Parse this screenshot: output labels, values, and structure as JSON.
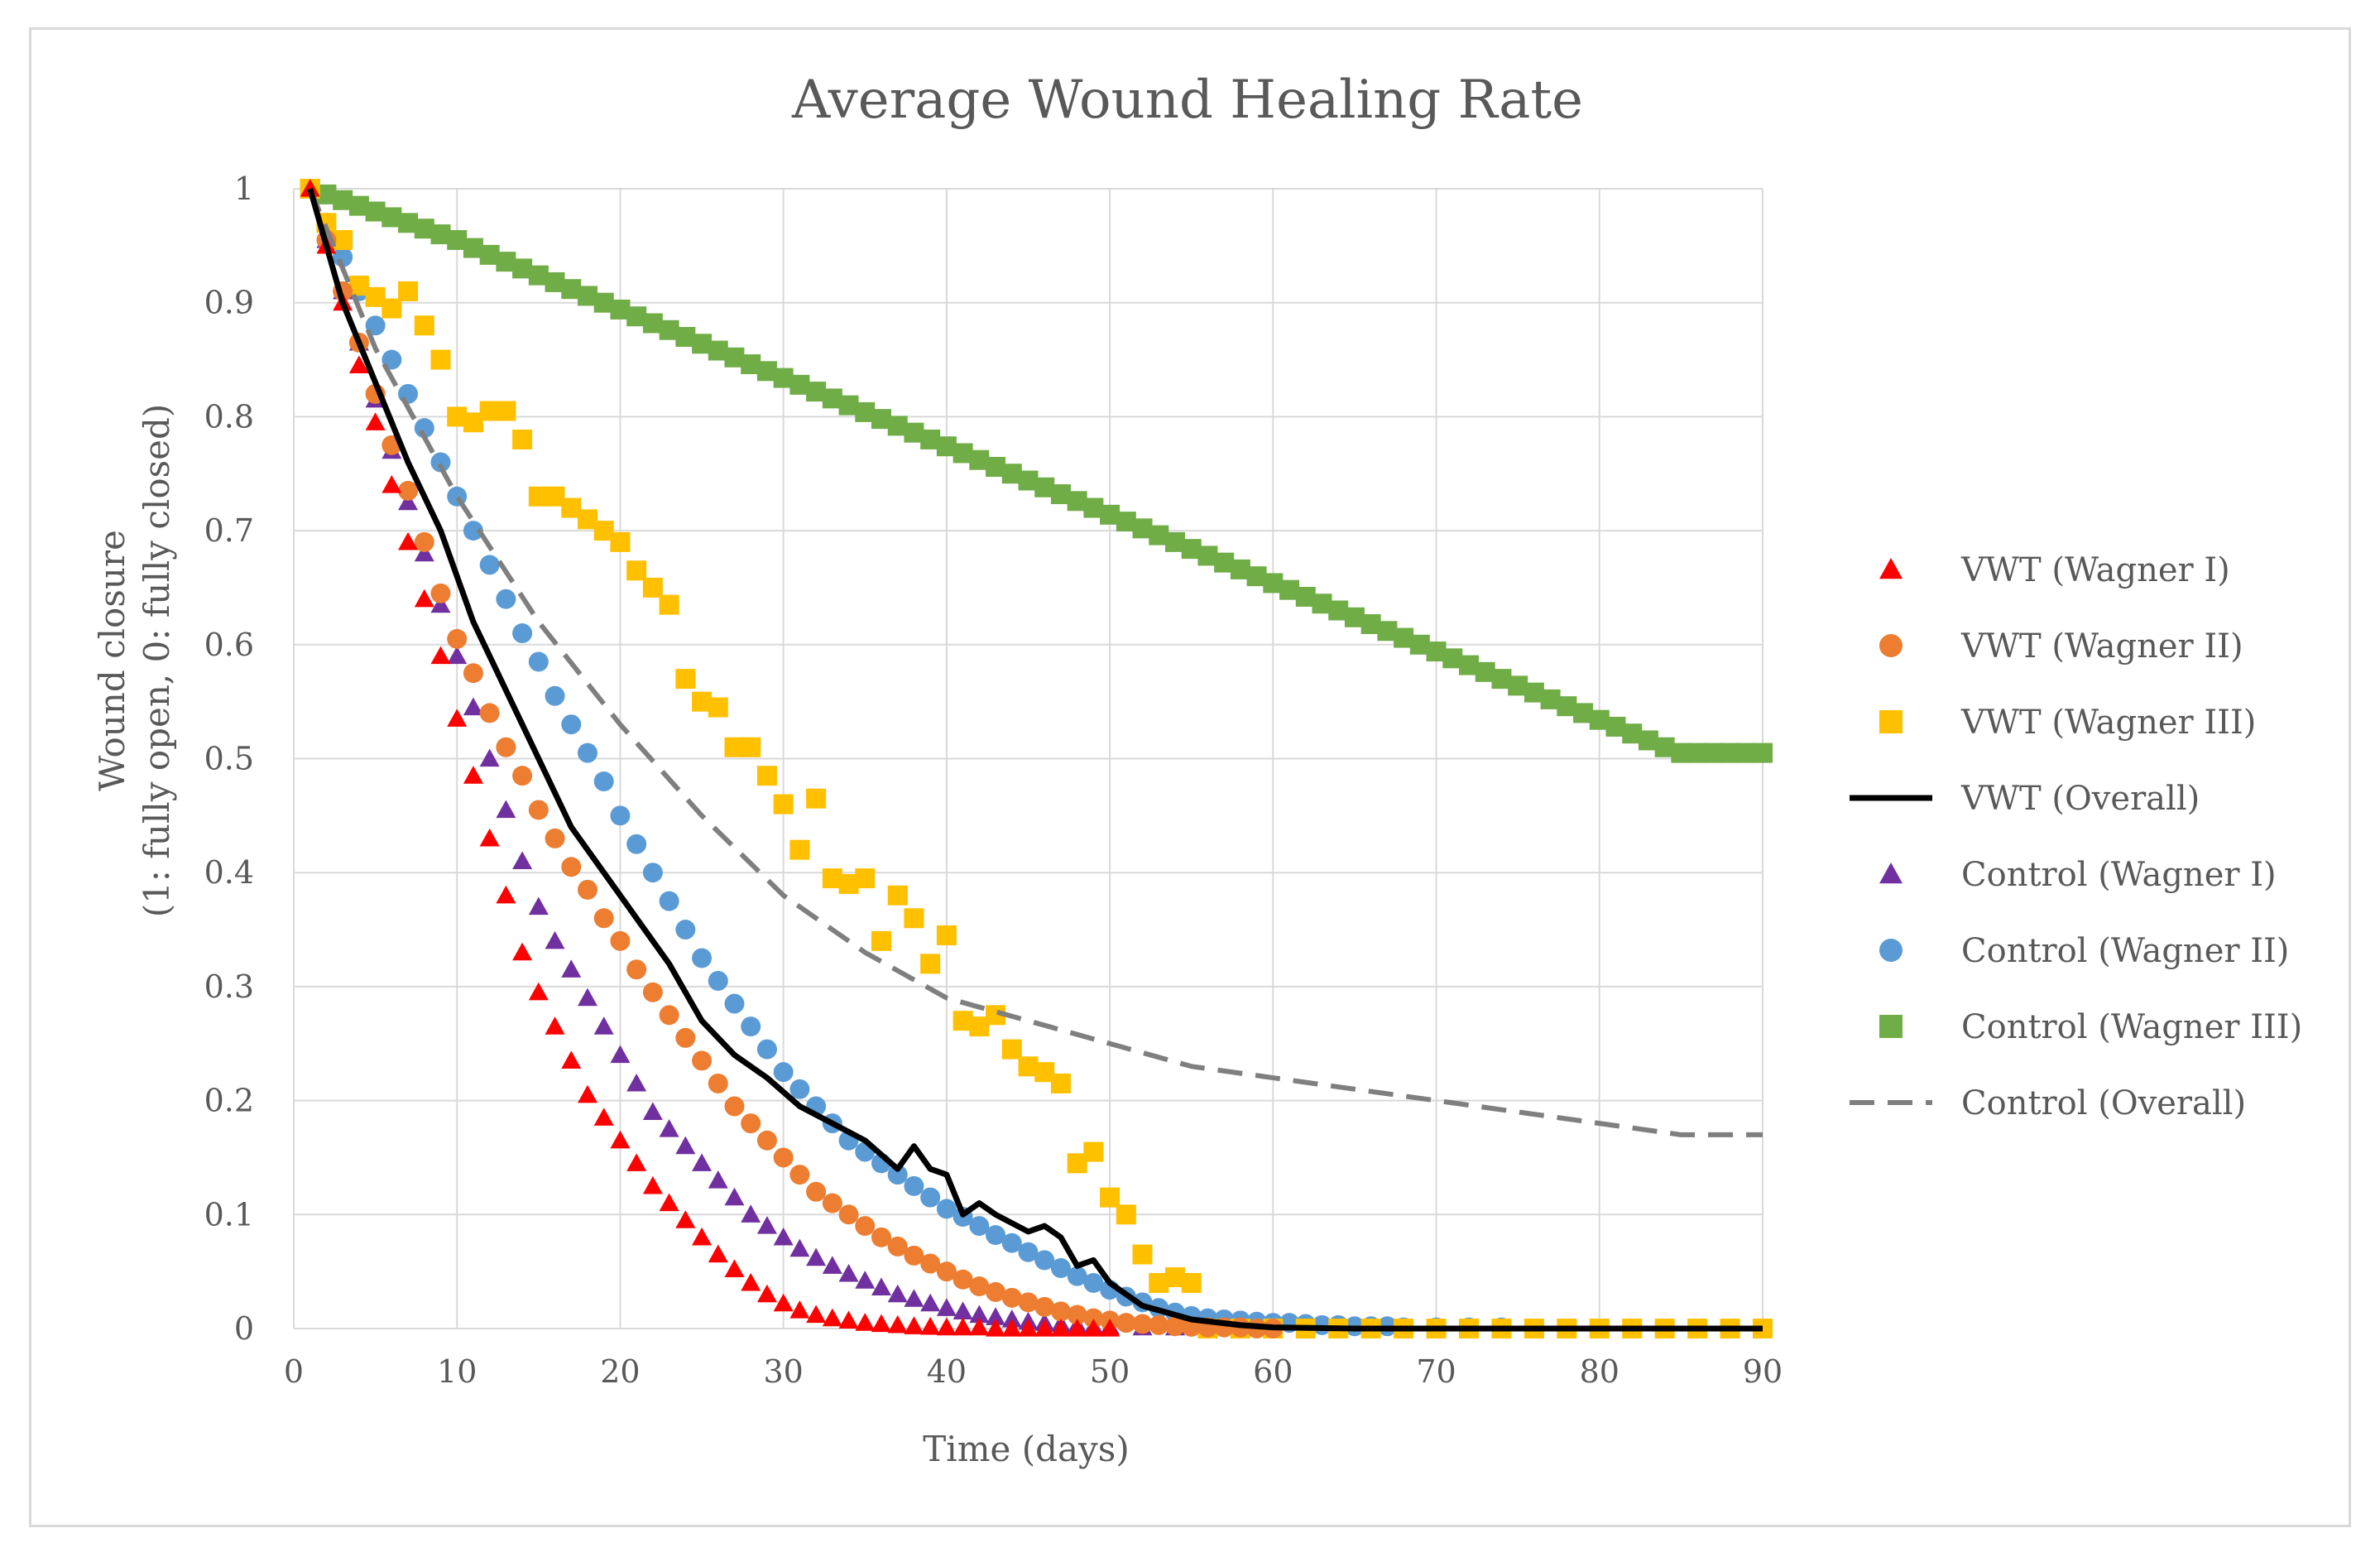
{
  "chart_data": {
    "type": "scatter",
    "title": "Average Wound Healing Rate",
    "xlabel": "Time (days)",
    "ylabel_line1": "Wound closure",
    "ylabel_line2": "(1: fully open, 0: fully closed)",
    "xlim": [
      0,
      90
    ],
    "ylim": [
      0,
      1
    ],
    "xticks": [
      "0",
      "10",
      "20",
      "30",
      "40",
      "50",
      "60",
      "70",
      "80",
      "90"
    ],
    "yticks": [
      "0",
      "0.1",
      "0.2",
      "0.3",
      "0.4",
      "0.5",
      "0.6",
      "0.7",
      "0.8",
      "0.9",
      "1"
    ],
    "grid": true,
    "legend_position": "right",
    "series": [
      {
        "name": "VWT (Wagner I)",
        "kind": "marker",
        "marker": "triangle",
        "color": "#ff0000",
        "x": [
          1,
          2,
          3,
          4,
          5,
          6,
          7,
          8,
          9,
          10,
          11,
          12,
          13,
          14,
          15,
          16,
          17,
          18,
          19,
          20,
          21,
          22,
          23,
          24,
          25,
          26,
          27,
          28,
          29,
          30,
          31,
          32,
          33,
          34,
          35,
          36,
          37,
          38,
          39,
          40,
          41,
          42,
          43,
          44,
          45,
          46,
          47,
          48,
          49,
          50
        ],
        "y": [
          1,
          0.95,
          0.9,
          0.845,
          0.795,
          0.74,
          0.69,
          0.64,
          0.59,
          0.535,
          0.485,
          0.43,
          0.38,
          0.33,
          0.295,
          0.265,
          0.235,
          0.205,
          0.185,
          0.165,
          0.145,
          0.125,
          0.11,
          0.095,
          0.08,
          0.065,
          0.052,
          0.04,
          0.03,
          0.022,
          0.016,
          0.012,
          0.009,
          0.007,
          0.005,
          0.004,
          0.003,
          0.002,
          0.0015,
          0.001,
          0.001,
          0.001,
          0,
          0,
          0,
          0,
          0,
          0,
          0,
          0
        ]
      },
      {
        "name": "VWT (Wagner II)",
        "kind": "marker",
        "marker": "circle",
        "color": "#ed7d31",
        "x": [
          2,
          3,
          4,
          5,
          6,
          7,
          8,
          9,
          10,
          11,
          12,
          13,
          14,
          15,
          16,
          17,
          18,
          19,
          20,
          21,
          22,
          23,
          24,
          25,
          26,
          27,
          28,
          29,
          30,
          31,
          32,
          33,
          34,
          35,
          36,
          37,
          38,
          39,
          40,
          41,
          42,
          43,
          44,
          45,
          46,
          47,
          48,
          49,
          50,
          51,
          52,
          53,
          54,
          55,
          56,
          57,
          58,
          59,
          60
        ],
        "y": [
          0.955,
          0.91,
          0.865,
          0.82,
          0.775,
          0.735,
          0.69,
          0.645,
          0.605,
          0.575,
          0.54,
          0.51,
          0.485,
          0.455,
          0.43,
          0.405,
          0.385,
          0.36,
          0.34,
          0.315,
          0.295,
          0.275,
          0.255,
          0.235,
          0.215,
          0.195,
          0.18,
          0.165,
          0.15,
          0.135,
          0.12,
          0.11,
          0.1,
          0.09,
          0.08,
          0.072,
          0.064,
          0.057,
          0.05,
          0.043,
          0.037,
          0.032,
          0.027,
          0.023,
          0.019,
          0.015,
          0.012,
          0.009,
          0.007,
          0.005,
          0.004,
          0.003,
          0.002,
          0.0015,
          0.001,
          0.001,
          0.001,
          0,
          0
        ]
      },
      {
        "name": "VWT (Wagner III)",
        "kind": "marker",
        "marker": "square",
        "color": "#ffc000",
        "x": [
          1,
          2,
          3,
          4,
          5,
          6,
          7,
          8,
          9,
          10,
          11,
          12,
          13,
          14,
          15,
          16,
          17,
          18,
          19,
          20,
          21,
          22,
          23,
          24,
          25,
          26,
          27,
          28,
          29,
          30,
          31,
          32,
          33,
          34,
          35,
          36,
          37,
          38,
          39,
          40,
          41,
          42,
          43,
          44,
          45,
          46,
          47,
          48,
          49,
          50,
          51,
          52,
          53,
          54,
          55,
          56,
          58,
          60,
          62,
          64,
          66,
          68,
          70,
          72,
          74,
          76,
          78,
          80,
          82,
          84,
          86,
          88,
          90
        ],
        "y": [
          1,
          0.97,
          0.955,
          0.915,
          0.905,
          0.895,
          0.91,
          0.88,
          0.85,
          0.8,
          0.795,
          0.805,
          0.805,
          0.78,
          0.73,
          0.73,
          0.72,
          0.71,
          0.7,
          0.69,
          0.665,
          0.65,
          0.635,
          0.57,
          0.55,
          0.545,
          0.51,
          0.51,
          0.485,
          0.46,
          0.42,
          0.465,
          0.395,
          0.39,
          0.395,
          0.34,
          0.38,
          0.36,
          0.32,
          0.345,
          0.27,
          0.265,
          0.275,
          0.245,
          0.23,
          0.225,
          0.215,
          0.145,
          0.155,
          0.115,
          0.1,
          0.065,
          0.04,
          0.045,
          0.04,
          0,
          0,
          0,
          0,
          0,
          0,
          0,
          0,
          0,
          0,
          0,
          0,
          0,
          0,
          0,
          0,
          0,
          0
        ]
      },
      {
        "name": "VWT (Overall)",
        "kind": "line",
        "dash": "solid",
        "color": "#000000",
        "x": [
          1,
          3,
          5,
          7,
          9,
          11,
          13,
          15,
          17,
          19,
          21,
          23,
          25,
          27,
          29,
          31,
          33,
          35,
          37,
          38,
          39,
          40,
          41,
          42,
          43,
          45,
          46,
          47,
          48,
          49,
          50,
          52,
          55,
          58,
          60,
          65,
          70,
          80,
          90
        ],
        "y": [
          1,
          0.9,
          0.83,
          0.76,
          0.7,
          0.62,
          0.56,
          0.5,
          0.44,
          0.4,
          0.36,
          0.32,
          0.27,
          0.24,
          0.22,
          0.195,
          0.18,
          0.165,
          0.14,
          0.16,
          0.14,
          0.135,
          0.1,
          0.11,
          0.1,
          0.085,
          0.09,
          0.08,
          0.055,
          0.06,
          0.04,
          0.02,
          0.008,
          0.003,
          0.001,
          0,
          0,
          0,
          0
        ]
      },
      {
        "name": "Control (Wagner I)",
        "kind": "marker",
        "marker": "triangle",
        "color": "#7030a0",
        "x": [
          1,
          2,
          3,
          4,
          5,
          6,
          7,
          8,
          9,
          10,
          11,
          12,
          13,
          14,
          15,
          16,
          17,
          18,
          19,
          20,
          21,
          22,
          23,
          24,
          25,
          26,
          27,
          28,
          29,
          30,
          31,
          32,
          33,
          34,
          35,
          36,
          37,
          38,
          39,
          40,
          41,
          42,
          43,
          44,
          45,
          46,
          47,
          48,
          49,
          50,
          52,
          54,
          56,
          58,
          60,
          62,
          64,
          66,
          68
        ],
        "y": [
          1,
          0.955,
          0.91,
          0.865,
          0.815,
          0.77,
          0.725,
          0.68,
          0.635,
          0.59,
          0.545,
          0.5,
          0.455,
          0.41,
          0.37,
          0.34,
          0.315,
          0.29,
          0.265,
          0.24,
          0.215,
          0.19,
          0.175,
          0.16,
          0.145,
          0.13,
          0.115,
          0.1,
          0.09,
          0.08,
          0.07,
          0.062,
          0.055,
          0.048,
          0.042,
          0.036,
          0.03,
          0.026,
          0.022,
          0.018,
          0.015,
          0.012,
          0.01,
          0.008,
          0.006,
          0.005,
          0.004,
          0.003,
          0.002,
          0.0015,
          0.001,
          0.001,
          0,
          0,
          0,
          0,
          0,
          0,
          0
        ]
      },
      {
        "name": "Control (Wagner II)",
        "kind": "marker",
        "marker": "circle",
        "color": "#5b9bd5",
        "x": [
          2,
          3,
          4,
          5,
          6,
          7,
          8,
          9,
          10,
          11,
          12,
          13,
          14,
          15,
          16,
          17,
          18,
          19,
          20,
          21,
          22,
          23,
          24,
          25,
          26,
          27,
          28,
          29,
          30,
          31,
          32,
          33,
          34,
          35,
          36,
          37,
          38,
          39,
          40,
          41,
          42,
          43,
          44,
          45,
          46,
          47,
          48,
          49,
          50,
          51,
          52,
          53,
          54,
          55,
          56,
          57,
          58,
          59,
          60,
          61,
          62,
          63,
          64,
          65,
          66,
          67,
          68,
          70,
          72,
          74,
          76,
          78,
          80,
          82,
          84,
          86,
          88,
          90
        ],
        "y": [
          0.97,
          0.94,
          0.91,
          0.88,
          0.85,
          0.82,
          0.79,
          0.76,
          0.73,
          0.7,
          0.67,
          0.64,
          0.61,
          0.585,
          0.555,
          0.53,
          0.505,
          0.48,
          0.45,
          0.425,
          0.4,
          0.375,
          0.35,
          0.325,
          0.305,
          0.285,
          0.265,
          0.245,
          0.225,
          0.21,
          0.195,
          0.18,
          0.165,
          0.155,
          0.145,
          0.135,
          0.125,
          0.115,
          0.105,
          0.098,
          0.09,
          0.082,
          0.075,
          0.067,
          0.06,
          0.053,
          0.046,
          0.04,
          0.034,
          0.028,
          0.023,
          0.018,
          0.014,
          0.011,
          0.009,
          0.008,
          0.007,
          0.006,
          0.005,
          0.005,
          0.004,
          0.003,
          0.003,
          0.002,
          0.002,
          0.002,
          0.001,
          0.001,
          0.001,
          0.001,
          0,
          0,
          0,
          0,
          0,
          0,
          0,
          0
        ]
      },
      {
        "name": "Control (Wagner III)",
        "kind": "marker",
        "marker": "square",
        "color": "#70ad47",
        "x": [
          1,
          2,
          3,
          4,
          5,
          6,
          7,
          8,
          9,
          10,
          11,
          12,
          13,
          14,
          15,
          16,
          17,
          18,
          19,
          20,
          21,
          22,
          23,
          24,
          25,
          26,
          27,
          28,
          29,
          30,
          31,
          32,
          33,
          34,
          35,
          36,
          37,
          38,
          39,
          40,
          41,
          42,
          43,
          44,
          45,
          46,
          47,
          48,
          49,
          50,
          51,
          52,
          53,
          54,
          55,
          56,
          57,
          58,
          59,
          60,
          61,
          62,
          63,
          64,
          65,
          66,
          67,
          68,
          69,
          70,
          71,
          72,
          73,
          74,
          75,
          76,
          77,
          78,
          79,
          80,
          81,
          82,
          83,
          84,
          85,
          86,
          87,
          88,
          89,
          90
        ],
        "y": [
          1,
          0.995,
          0.99,
          0.985,
          0.98,
          0.975,
          0.97,
          0.965,
          0.96,
          0.955,
          0.948,
          0.942,
          0.936,
          0.93,
          0.924,
          0.918,
          0.912,
          0.906,
          0.9,
          0.894,
          0.888,
          0.882,
          0.876,
          0.87,
          0.864,
          0.858,
          0.852,
          0.846,
          0.84,
          0.834,
          0.828,
          0.822,
          0.816,
          0.81,
          0.804,
          0.798,
          0.792,
          0.786,
          0.78,
          0.774,
          0.768,
          0.762,
          0.756,
          0.75,
          0.744,
          0.738,
          0.732,
          0.726,
          0.72,
          0.714,
          0.708,
          0.702,
          0.696,
          0.69,
          0.684,
          0.678,
          0.672,
          0.666,
          0.66,
          0.654,
          0.648,
          0.642,
          0.636,
          0.63,
          0.624,
          0.618,
          0.612,
          0.606,
          0.6,
          0.594,
          0.588,
          0.582,
          0.576,
          0.57,
          0.564,
          0.558,
          0.552,
          0.546,
          0.54,
          0.534,
          0.528,
          0.522,
          0.516,
          0.51,
          0.505,
          0.505,
          0.505,
          0.505,
          0.505,
          0.505
        ]
      },
      {
        "name": "Control (Overall)",
        "kind": "line",
        "dash": "dashed",
        "color": "#7f7f7f",
        "x": [
          1,
          5,
          10,
          15,
          20,
          25,
          30,
          35,
          40,
          45,
          50,
          55,
          60,
          65,
          70,
          75,
          80,
          85,
          90
        ],
        "y": [
          1,
          0.86,
          0.73,
          0.62,
          0.53,
          0.45,
          0.38,
          0.33,
          0.29,
          0.27,
          0.25,
          0.23,
          0.22,
          0.21,
          0.2,
          0.19,
          0.18,
          0.17,
          0.17
        ]
      }
    ]
  }
}
